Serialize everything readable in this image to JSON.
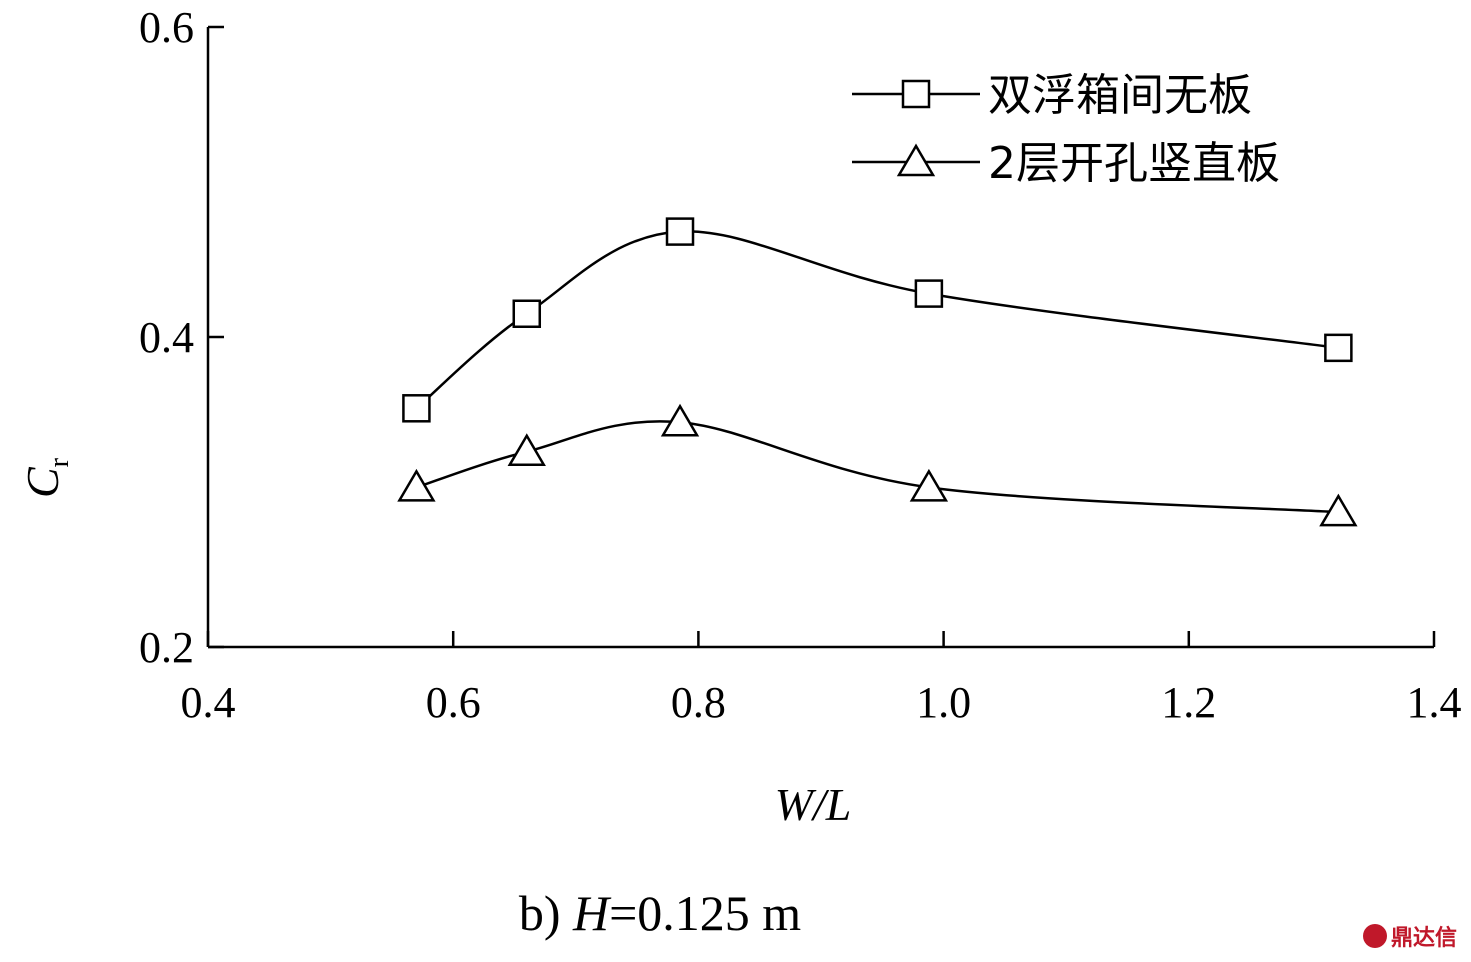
{
  "chart_data": {
    "type": "line",
    "xlabel": "W/L",
    "ylabel_main": "C",
    "ylabel_sub": "r",
    "xlim": [
      0.4,
      1.4
    ],
    "ylim": [
      0.2,
      0.6
    ],
    "xticks": [
      "0.4",
      "0.6",
      "0.8",
      "1.0",
      "1.2",
      "1.4"
    ],
    "yticks": [
      "0.2",
      "0.4",
      "0.6"
    ],
    "grid": false,
    "legend_position": "top-right",
    "series": [
      {
        "name": "双浮箱间无板",
        "marker": "square",
        "x": [
          0.57,
          0.66,
          0.785,
          0.988,
          1.322
        ],
        "y": [
          0.354,
          0.415,
          0.468,
          0.428,
          0.393
        ]
      },
      {
        "name": "2层开孔竖直板",
        "marker": "triangle",
        "x": [
          0.57,
          0.66,
          0.785,
          0.988,
          1.322
        ],
        "y": [
          0.303,
          0.326,
          0.345,
          0.303,
          0.287
        ]
      }
    ]
  },
  "caption": {
    "prefix": "b) ",
    "variable": "H",
    "value": "=0.125 m"
  },
  "watermark": {
    "text": "鼎达信"
  }
}
